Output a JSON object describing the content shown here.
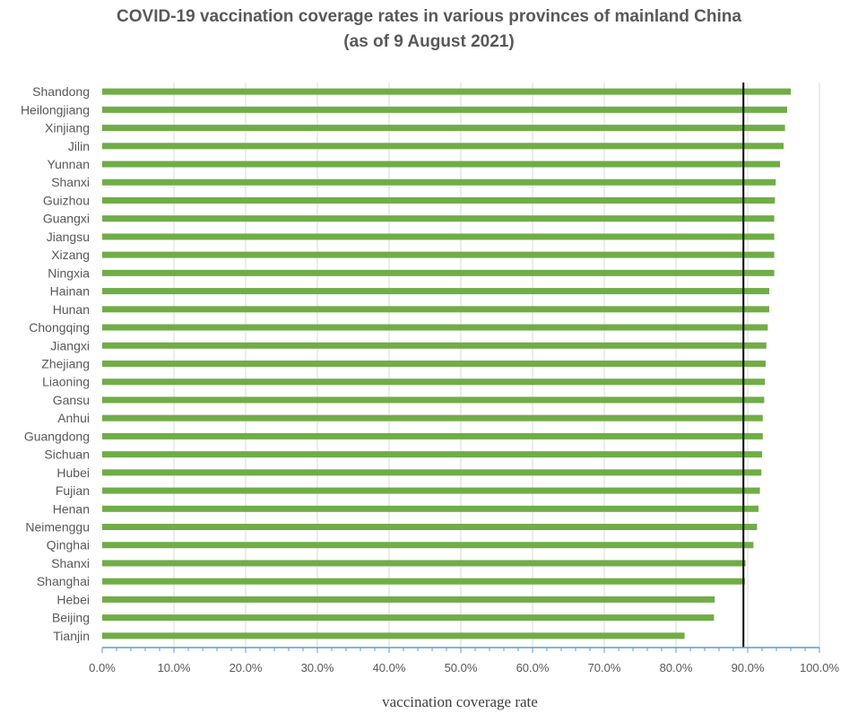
{
  "chart_data": {
    "type": "bar",
    "orientation": "horizontal",
    "title": "COVID-19 vaccination coverage rates in various provinces of mainland China",
    "subtitle": "(as of 9 August 2021)",
    "xlabel": "vaccination coverage rate",
    "ylabel": "",
    "xlim": [
      0,
      100
    ],
    "xticks": [
      "0.0%",
      "10.0%",
      "20.0%",
      "30.0%",
      "40.0%",
      "50.0%",
      "60.0%",
      "70.0%",
      "80.0%",
      "90.0%",
      "100.0%"
    ],
    "categories": [
      "Shandong",
      "Heilongjiang",
      "Xinjiang",
      "Jilin",
      "Yunnan",
      "Shanxi",
      "Guizhou",
      "Guangxi",
      "Jiangsu",
      "Xizang",
      "Ningxia",
      "Hainan",
      "Hunan",
      "Chongqing",
      "Jiangxi",
      "Zhejiang",
      "Liaoning",
      "Gansu",
      "Anhui",
      "Guangdong",
      "Sichuan",
      "Hubei",
      "Fujian",
      "Henan",
      "Neimenggu",
      "Qinghai",
      "Shanxi",
      "Shanghai",
      "Hebei",
      "Beijing",
      "Tianjin"
    ],
    "values": [
      96.0,
      95.5,
      95.2,
      95.0,
      94.5,
      93.9,
      93.8,
      93.7,
      93.7,
      93.7,
      93.7,
      93.0,
      93.0,
      92.8,
      92.6,
      92.5,
      92.4,
      92.3,
      92.1,
      92.1,
      92.0,
      91.9,
      91.7,
      91.5,
      91.3,
      90.8,
      89.7,
      89.6,
      85.4,
      85.3,
      81.2
    ],
    "reference_line": 89.4,
    "bar_color": "#70ad47",
    "reference_line_color": "#000000",
    "grid": true,
    "grid_color": "#d9d9d9",
    "axis_color": "#5b9bd5"
  }
}
